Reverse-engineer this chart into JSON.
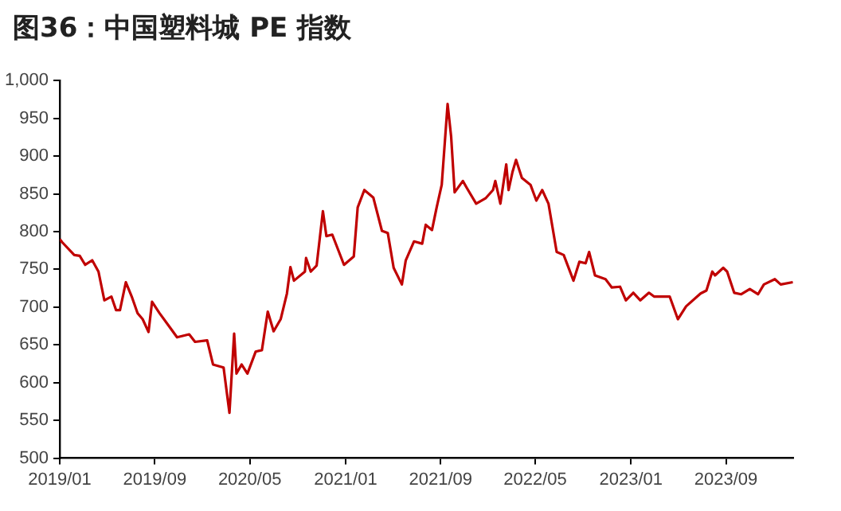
{
  "chart_data": {
    "type": "line",
    "title": "图36：中国塑料城 PE 指数",
    "x": [
      "2019-01-01",
      "2019-01-07",
      "2019-02-07",
      "2019-02-21",
      "2019-03-07",
      "2019-03-25",
      "2019-04-10",
      "2019-04-25",
      "2019-05-13",
      "2019-05-25",
      "2019-06-04",
      "2019-06-19",
      "2019-07-04",
      "2019-07-19",
      "2019-08-01",
      "2019-08-16",
      "2019-08-25",
      "2019-09-13",
      "2019-10-07",
      "2019-10-28",
      "2019-11-28",
      "2019-12-13",
      "2020-01-13",
      "2020-01-28",
      "2020-02-24",
      "2020-03-10",
      "2020-03-22",
      "2020-03-28",
      "2020-04-10",
      "2020-04-25",
      "2020-05-16",
      "2020-06-01",
      "2020-06-16",
      "2020-07-01",
      "2020-07-19",
      "2020-08-04",
      "2020-08-13",
      "2020-08-22",
      "2020-09-19",
      "2020-09-22",
      "2020-10-04",
      "2020-10-19",
      "2020-11-04",
      "2020-11-13",
      "2020-11-28",
      "2020-12-28",
      "2021-01-22",
      "2021-02-01",
      "2021-02-18",
      "2021-03-13",
      "2021-04-04",
      "2021-04-19",
      "2021-05-04",
      "2021-05-25",
      "2021-06-04",
      "2021-06-25",
      "2021-07-16",
      "2021-07-25",
      "2021-08-10",
      "2021-08-22",
      "2021-09-04",
      "2021-09-19",
      "2021-09-28",
      "2021-10-07",
      "2021-10-28",
      "2021-11-07",
      "2021-12-01",
      "2021-12-25",
      "2022-01-13",
      "2022-01-19",
      "2022-02-01",
      "2022-02-16",
      "2022-02-22",
      "2022-03-04",
      "2022-03-13",
      "2022-03-28",
      "2022-04-19",
      "2022-05-04",
      "2022-05-19",
      "2022-06-04",
      "2022-06-25",
      "2022-07-13",
      "2022-08-07",
      "2022-08-22",
      "2022-09-07",
      "2022-09-16",
      "2022-10-01",
      "2022-10-28",
      "2022-11-13",
      "2022-12-04",
      "2022-12-19",
      "2023-01-07",
      "2023-01-25",
      "2023-02-16",
      "2023-03-01",
      "2023-04-10",
      "2023-05-01",
      "2023-05-22",
      "2023-06-28",
      "2023-07-13",
      "2023-07-28",
      "2023-08-04",
      "2023-08-25",
      "2023-09-04",
      "2023-09-22",
      "2023-10-10",
      "2023-11-01",
      "2023-11-22",
      "2023-12-07",
      "2024-01-04",
      "2024-01-19",
      "2024-02-19"
    ],
    "series": [
      {
        "color": "#c00000",
        "values": [
          790,
          786,
          769,
          768,
          756,
          762,
          747,
          709,
          714,
          696,
          696,
          733,
          714,
          692,
          684,
          667,
          707,
          692,
          675,
          660,
          664,
          654,
          656,
          624,
          620,
          560,
          665,
          612,
          624,
          612,
          641,
          643,
          694,
          668,
          684,
          718,
          753,
          735,
          747,
          765,
          747,
          755,
          827,
          794,
          796,
          756,
          767,
          832,
          855,
          845,
          801,
          798,
          752,
          730,
          762,
          787,
          784,
          809,
          802,
          832,
          862,
          969,
          926,
          852,
          867,
          858,
          837,
          844,
          855,
          867,
          837,
          889,
          855,
          879,
          895,
          871,
          862,
          841,
          855,
          837,
          773,
          769,
          735,
          760,
          758,
          773,
          742,
          737,
          726,
          727,
          709,
          719,
          709,
          719,
          714,
          714,
          684,
          701,
          718,
          722,
          747,
          742,
          752,
          747,
          719,
          717,
          724,
          717,
          730,
          737,
          730,
          733
        ]
      }
    ],
    "xlim": [
      "2019-01-01",
      "2024-02-20"
    ],
    "xticks": [
      {
        "value": "2019-01",
        "label": "2019/01"
      },
      {
        "value": "2019-09",
        "label": "2019/09"
      },
      {
        "value": "2020-05",
        "label": "2020/05"
      },
      {
        "value": "2021-01",
        "label": "2021/01"
      },
      {
        "value": "2021-09",
        "label": "2021/09"
      },
      {
        "value": "2022-05",
        "label": "2022/05"
      },
      {
        "value": "2023-01",
        "label": "2023/01"
      },
      {
        "value": "2023-09",
        "label": "2023/09"
      }
    ],
    "ylim": [
      500,
      1000
    ],
    "yticks": [
      500,
      550,
      600,
      650,
      700,
      750,
      800,
      850,
      900,
      950,
      {
        "value": 1000,
        "label": "1,000"
      }
    ],
    "grid": false,
    "legend": false,
    "marker": "none",
    "line_style": "solid"
  }
}
